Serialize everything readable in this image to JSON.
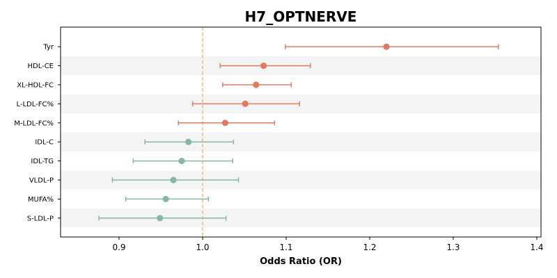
{
  "chart_data": {
    "type": "scatter",
    "subtype": "forest-plot",
    "title": "H7_OPTNERVE",
    "xlabel": "Odds Ratio (OR)",
    "ylabel": "",
    "xlim": [
      0.83,
      1.405
    ],
    "xticks": [
      0.9,
      1.0,
      1.1,
      1.2,
      1.3,
      1.4
    ],
    "xtick_labels": [
      "0.9",
      "1.0",
      "1.1",
      "1.2",
      "1.3",
      "1.4"
    ],
    "reference_line": {
      "x": 1.0,
      "style": "dashed",
      "color": "#f0c27b"
    },
    "grid": false,
    "row_banding": true,
    "colors": {
      "positive": "#e07b63",
      "negative": "#86b8a0",
      "band": "#f4f4f4"
    },
    "rows": [
      {
        "label": "Tyr",
        "or": 1.22,
        "ci_low": 1.099,
        "ci_high": 1.354,
        "direction": "positive"
      },
      {
        "label": "HDL-CE",
        "or": 1.073,
        "ci_low": 1.021,
        "ci_high": 1.129,
        "direction": "positive"
      },
      {
        "label": "XL-HDL-FC",
        "or": 1.064,
        "ci_low": 1.024,
        "ci_high": 1.106,
        "direction": "positive"
      },
      {
        "label": "L-LDL-FC%",
        "or": 1.051,
        "ci_low": 0.988,
        "ci_high": 1.116,
        "direction": "positive"
      },
      {
        "label": "M-LDL-FC%",
        "or": 1.027,
        "ci_low": 0.971,
        "ci_high": 1.086,
        "direction": "positive"
      },
      {
        "label": "IDL-C",
        "or": 0.983,
        "ci_low": 0.931,
        "ci_high": 1.037,
        "direction": "negative"
      },
      {
        "label": "IDL-TG",
        "or": 0.975,
        "ci_low": 0.917,
        "ci_high": 1.036,
        "direction": "negative"
      },
      {
        "label": "VLDL-P",
        "or": 0.965,
        "ci_low": 0.892,
        "ci_high": 1.043,
        "direction": "negative"
      },
      {
        "label": "MUFA%",
        "or": 0.956,
        "ci_low": 0.908,
        "ci_high": 1.007,
        "direction": "negative"
      },
      {
        "label": "S-LDL-P",
        "or": 0.949,
        "ci_low": 0.876,
        "ci_high": 1.028,
        "direction": "negative"
      }
    ]
  }
}
